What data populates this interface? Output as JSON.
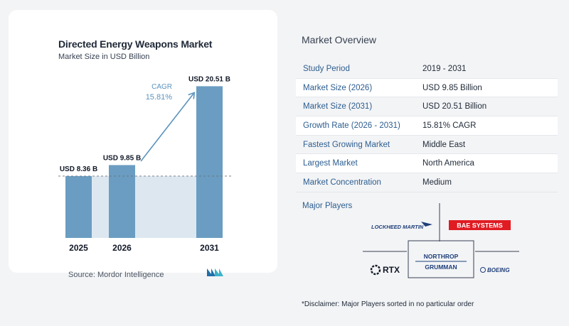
{
  "chart_data": {
    "type": "bar",
    "title": "Directed Energy Weapons Market",
    "subtitle": "Market Size in USD Billion",
    "categories": [
      "2025",
      "2026",
      "2031"
    ],
    "values": [
      8.36,
      9.85,
      20.51
    ],
    "data_labels": [
      "USD 8.36 B",
      "USD 9.85 B",
      "USD 20.51 B"
    ],
    "ylim": [
      0,
      21.7
    ],
    "grid": false,
    "annotation": {
      "label": "CAGR",
      "value": "15.81%"
    },
    "bar_color": "#6a9dc1",
    "shade_color": "#dde7f0",
    "arrow_color": "#5b93bd"
  },
  "source": "Source:  Mordor Intelligence",
  "overview": {
    "title": "Market Overview",
    "rows": [
      {
        "label": "Study Period",
        "value": "2019 - 2031"
      },
      {
        "label": "Market Size (2026)",
        "value": "USD 9.85 Billion"
      },
      {
        "label": "Market Size (2031)",
        "value": "USD 20.51 Billion"
      },
      {
        "label": "Growth Rate (2026 - 2031)",
        "value": "15.81% CAGR"
      },
      {
        "label": "Fastest Growing Market",
        "value": "Middle East"
      },
      {
        "label": "Largest Market",
        "value": "North America"
      },
      {
        "label": "Market Concentration",
        "value": "Medium"
      }
    ]
  },
  "players": {
    "title": "Major Players",
    "logos": [
      {
        "name": "lockheed-martin-logo",
        "text": "LOCKHEED MARTIN"
      },
      {
        "name": "bae-systems-logo",
        "text": "BAE SYSTEMS"
      },
      {
        "name": "rtx-logo",
        "text": "RTX"
      },
      {
        "name": "northrop-grumman-logo",
        "text": "NORTHROP GRUMMAN"
      },
      {
        "name": "boeing-logo",
        "text": "BOEING"
      }
    ]
  },
  "disclaimer": "*Disclaimer: Major Players sorted in no particular order"
}
